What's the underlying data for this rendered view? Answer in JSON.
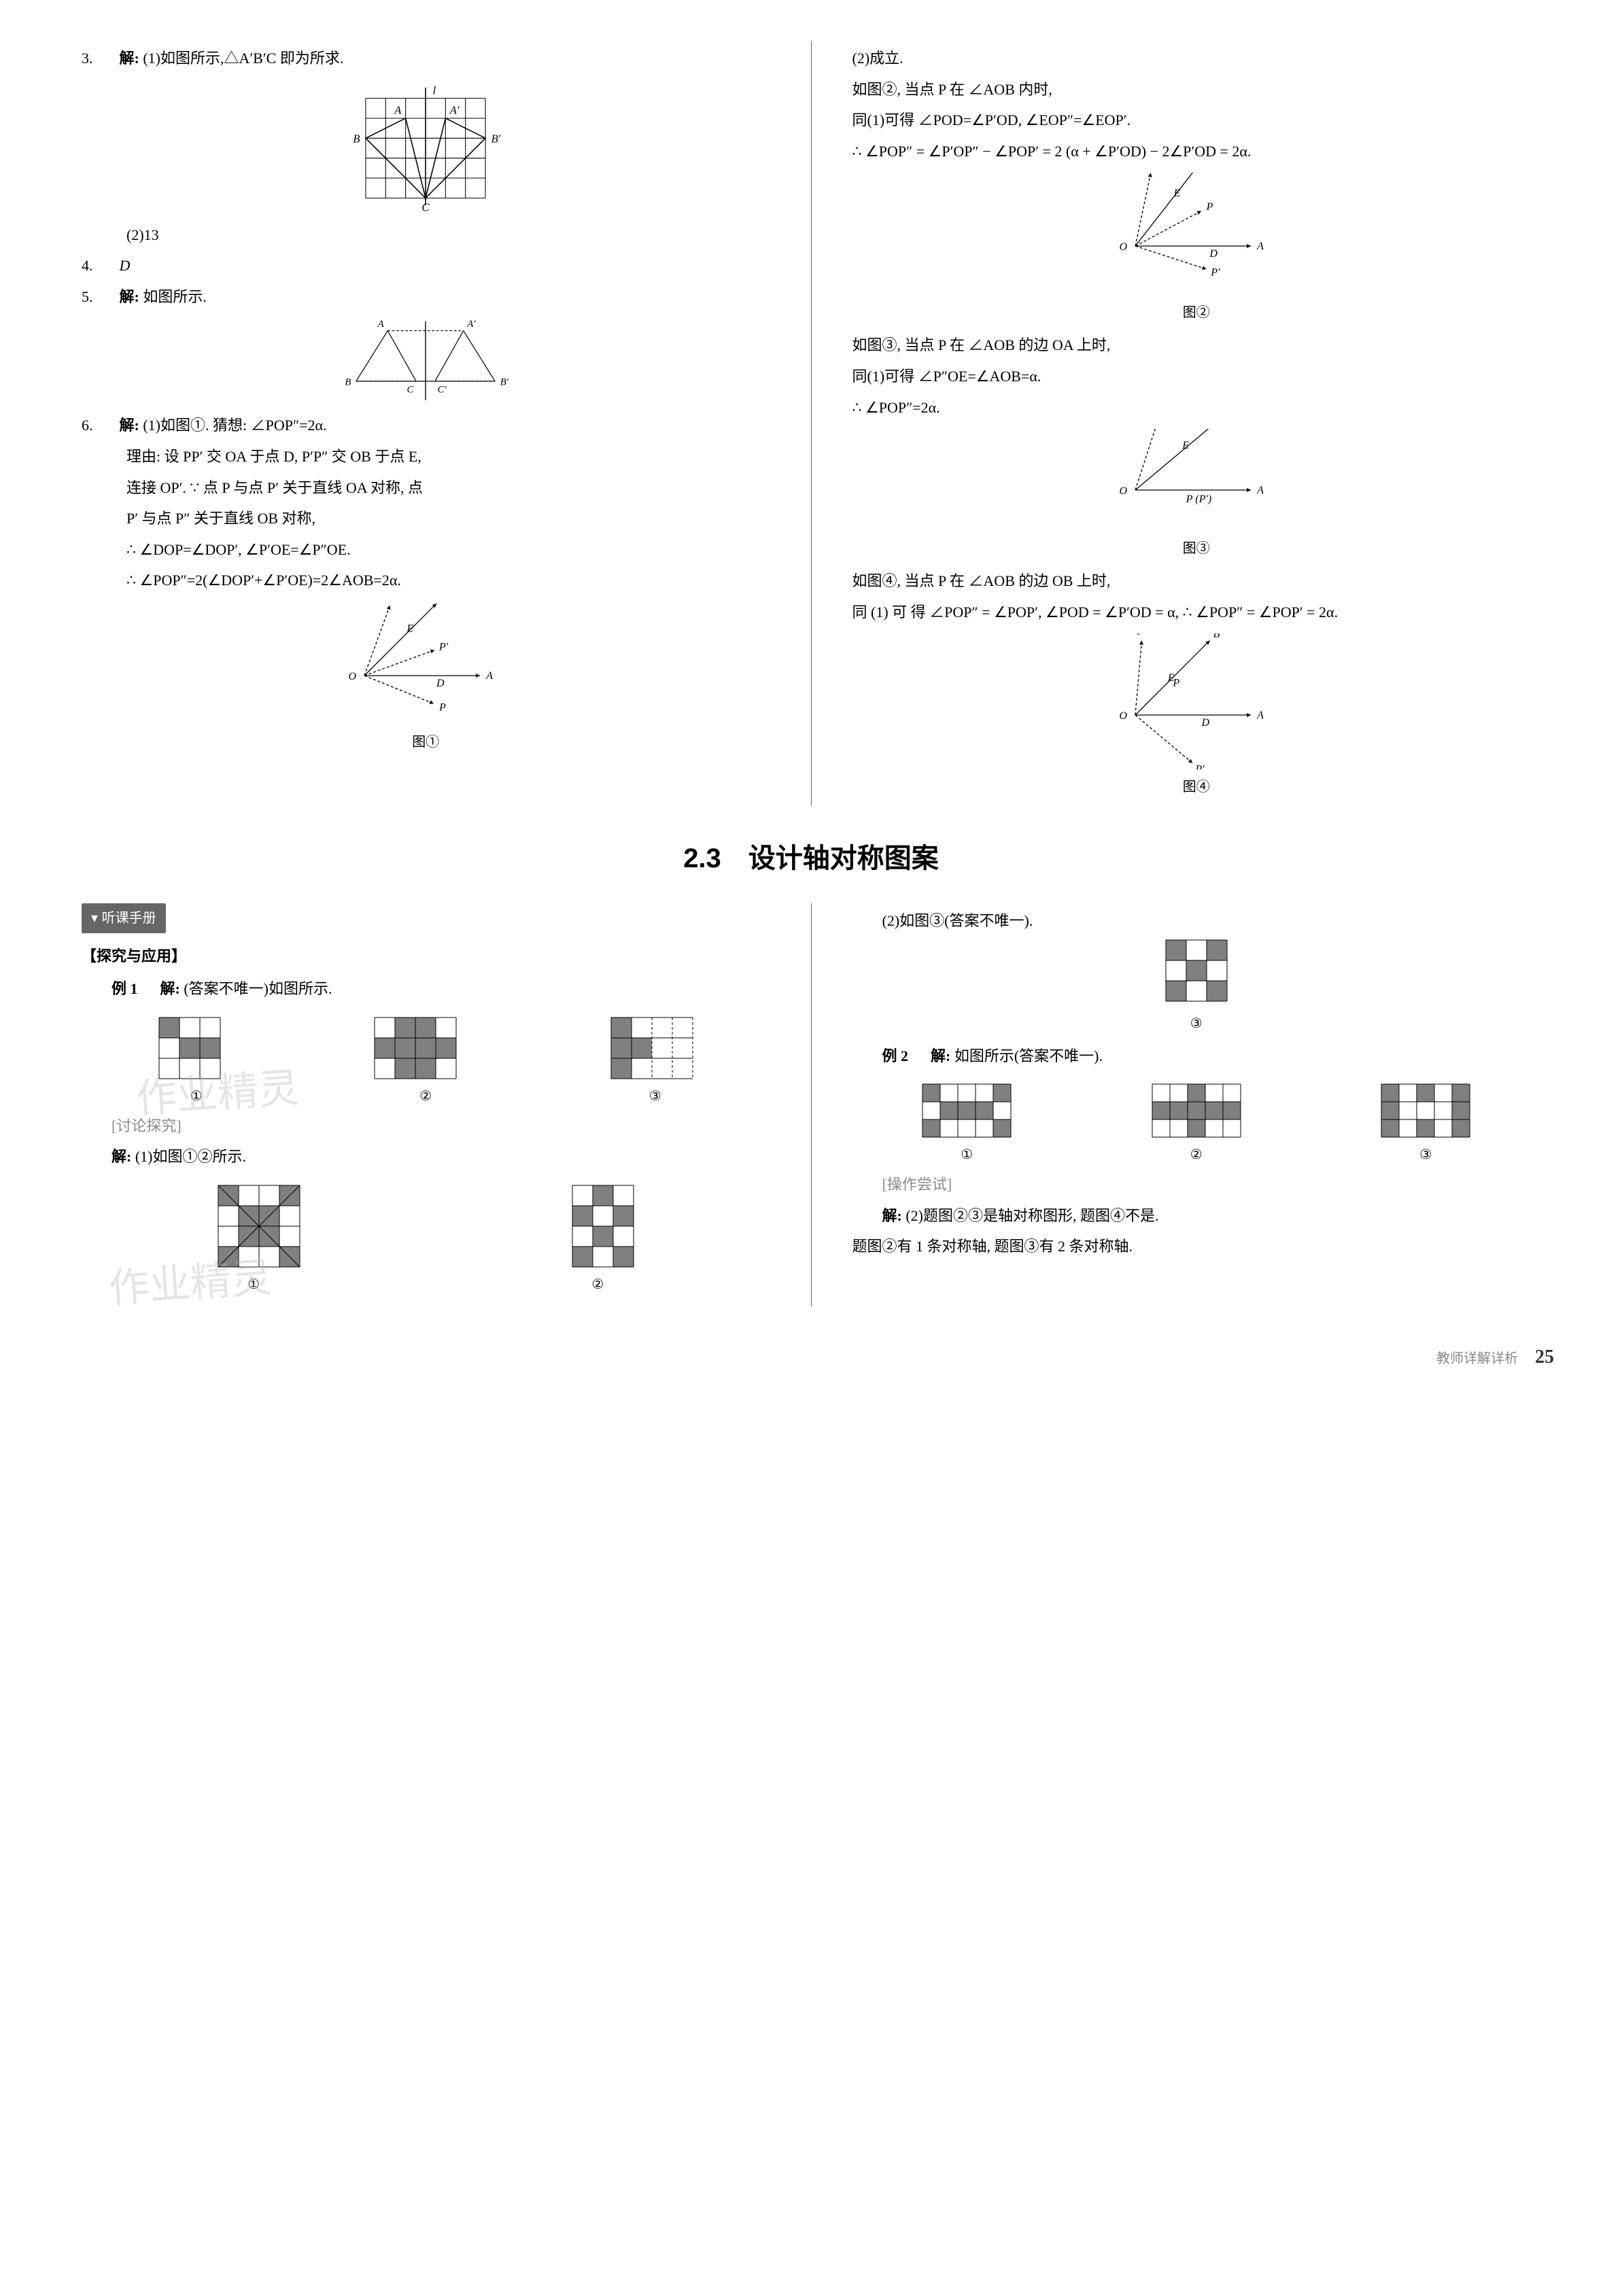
{
  "upper": {
    "left": {
      "q3": {
        "num": "3.",
        "label": "解:",
        "part1": "(1)如图所示,△A′B′C 即为所求.",
        "part2": "(2)13",
        "fig1": {
          "type": "grid-diagram",
          "grid": {
            "cols": 6,
            "rows": 5,
            "cell": 28,
            "stroke": "#000000"
          },
          "axis_label": "l",
          "points": {
            "A": [
              2,
              1
            ],
            "A'": [
              4,
              1
            ],
            "B": [
              0,
              2
            ],
            "B'": [
              6,
              2
            ],
            "C": [
              3,
              5
            ]
          },
          "triangles": [
            [
              "A",
              "B",
              "C"
            ],
            [
              "A'",
              "B'",
              "C"
            ]
          ],
          "fontsize": 16
        }
      },
      "q4": {
        "num": "4.",
        "ans": "D"
      },
      "q5": {
        "num": "5.",
        "label": "解:",
        "text": "如图所示.",
        "fig": {
          "type": "mirror-triangles",
          "points": {
            "A": [
              -60,
              -70
            ],
            "A'": [
              60,
              -70
            ],
            "B": [
              -110,
              10
            ],
            "B'": [
              110,
              10
            ],
            "C": [
              -15,
              10
            ],
            "C'": [
              15,
              10
            ]
          },
          "dashed": [
            "A-A'",
            "C-C'"
          ],
          "solid": [
            [
              "A",
              "B",
              "C"
            ],
            [
              "A'",
              "B'",
              "C'"
            ]
          ],
          "axis": "vertical",
          "fontsize": 16
        }
      },
      "q6": {
        "num": "6.",
        "label": "解:",
        "lines": [
          "(1)如图①. 猜想: ∠POP″=2α.",
          "理由: 设 PP′ 交 OA 于点 D, P′P″ 交 OB 于点 E,",
          "连接 OP′. ∵ 点 P 与点 P′ 关于直线 OA 对称, 点",
          "P′ 与点 P″ 关于直线 OB 对称,",
          "∴ ∠DOP=∠DOP′, ∠P′OE=∠P″OE.",
          "∴ ∠POP″=2(∠DOP′+∠P′OE)=2∠AOB=2α."
        ],
        "fig": {
          "label": "图①",
          "type": "ray-diagram",
          "origin": "O",
          "rays": [
            {
              "label": "P″",
              "angle": 70,
              "len": 110,
              "style": "dashed"
            },
            {
              "label": "B",
              "angle": 45,
              "len": 150,
              "style": "solid",
              "E_at": 0.55
            },
            {
              "label": "P′",
              "angle": 20,
              "len": 110,
              "style": "dashed"
            },
            {
              "label": "A",
              "angle": 0,
              "len": 170,
              "style": "solid",
              "D_at": 0.6
            },
            {
              "label": "P",
              "angle": -22,
              "len": 110,
              "style": "dashed"
            }
          ],
          "extras": {
            "D_label": "D",
            "E_label": "E"
          },
          "fontsize": 16
        }
      }
    },
    "right": {
      "p1": "(2)成立.",
      "p2": "如图②, 当点 P 在 ∠AOB 内时,",
      "p3": "同(1)可得 ∠POD=∠P′OD, ∠EOP″=∠EOP′.",
      "p4": "∴ ∠POP″ = ∠P′OP″ − ∠POP′ = 2 (α + ∠P′OD) − 2∠P′OD = 2α.",
      "fig2": {
        "label": "图②",
        "type": "ray-diagram",
        "origin": "O",
        "rays": [
          {
            "label": "P″",
            "angle": 78,
            "len": 110,
            "style": "dashed"
          },
          {
            "label": "B",
            "angle": 52,
            "len": 155,
            "style": "solid",
            "E_at": 0.55
          },
          {
            "label": "P",
            "angle": 28,
            "len": 110,
            "style": "dashed"
          },
          {
            "label": "A",
            "angle": 0,
            "len": 170,
            "style": "solid",
            "D_at": 0.62
          },
          {
            "label": "P′",
            "angle": -18,
            "len": 110,
            "style": "dashed"
          }
        ],
        "extras": {
          "D_label": "D",
          "E_label": "E"
        },
        "fontsize": 16
      },
      "p5": "如图③, 当点 P 在 ∠AOB 的边 OA 上时,",
      "p6": "同(1)可得 ∠P″OE=∠AOB=α.",
      "p7": "∴ ∠POP″=2α.",
      "fig3": {
        "label": "图③",
        "type": "ray-diagram",
        "origin": "O",
        "rays": [
          {
            "label": "P″",
            "angle": 72,
            "len": 110,
            "style": "dashed"
          },
          {
            "label": "B",
            "angle": 40,
            "len": 155,
            "style": "solid",
            "E_at": 0.55
          },
          {
            "label": "A",
            "angle": 0,
            "len": 170,
            "style": "solid",
            "P_at": 0.55,
            "P_label": "P (P′)"
          }
        ],
        "extras": {
          "E_label": "E"
        },
        "fontsize": 16
      },
      "p8": "如图④, 当点 P 在 ∠AOB 的边 OB 上时,",
      "p9": "同 (1) 可 得 ∠POP″ = ∠POP′, ∠POD = ∠P′OD = α, ∴ ∠POP″ = ∠POP′ = 2α.",
      "fig4": {
        "label": "图④",
        "type": "ray-diagram",
        "origin": "O",
        "rays": [
          {
            "label": "P″",
            "angle": 85,
            "len": 110,
            "style": "dashed"
          },
          {
            "label": "B",
            "angle": 45,
            "len": 155,
            "style": "solid",
            "P_at": 0.55,
            "P_label": "P",
            "E_at": 0.4
          },
          {
            "label": "A",
            "angle": 0,
            "len": 170,
            "style": "solid",
            "D_at": 0.55
          },
          {
            "label": "P′",
            "angle": -40,
            "len": 110,
            "style": "dashed"
          }
        ],
        "extras": {
          "D_label": "D",
          "E_label": "E"
        },
        "fontsize": 16
      }
    }
  },
  "section_title": "2.3　设计轴对称图案",
  "lower": {
    "left": {
      "badge": "听课手册",
      "sub1": "【探究与应用】",
      "ex1": {
        "label": "例 1",
        "solve": "解:",
        "text": "(答案不唯一)如图所示."
      },
      "ex1_figs": {
        "type": "grid-patterns",
        "cell": 30,
        "patterns": [
          {
            "label": "①",
            "cols": 3,
            "rows": 3,
            "filled": [
              [
                0,
                0
              ],
              [
                1,
                1
              ],
              [
                2,
                1
              ]
            ],
            "dashed": [
              [
                0,
                2
              ]
            ]
          },
          {
            "label": "②",
            "cols": 4,
            "rows": 3,
            "filled": [
              [
                1,
                0
              ],
              [
                2,
                0
              ],
              [
                0,
                1
              ],
              [
                1,
                1
              ],
              [
                2,
                1
              ],
              [
                3,
                1
              ],
              [
                1,
                2
              ],
              [
                2,
                2
              ]
            ]
          },
          {
            "label": "③",
            "cols": 4,
            "rows": 3,
            "filled": [
              [
                0,
                0
              ],
              [
                0,
                1
              ],
              [
                0,
                2
              ],
              [
                1,
                1
              ]
            ],
            "dashed_cols": [
              2,
              3
            ]
          }
        ]
      },
      "discuss": "[讨论探究]",
      "disc_text": {
        "label": "解:",
        "text": "(1)如图①②所示."
      },
      "disc_figs": {
        "type": "grid-patterns",
        "cell": 30,
        "patterns": [
          {
            "label": "①",
            "cols": 4,
            "rows": 4,
            "filled": [
              [
                0,
                0
              ],
              [
                3,
                0
              ],
              [
                1,
                1
              ],
              [
                2,
                1
              ],
              [
                1,
                2
              ],
              [
                2,
                2
              ],
              [
                0,
                3
              ],
              [
                3,
                3
              ]
            ],
            "diag": true
          },
          {
            "label": "②",
            "cols": 3,
            "rows": 4,
            "filled": [
              [
                1,
                0
              ],
              [
                0,
                1
              ],
              [
                2,
                1
              ],
              [
                1,
                2
              ],
              [
                0,
                3
              ],
              [
                2,
                3
              ]
            ]
          }
        ]
      },
      "watermark": "作业精灵"
    },
    "right": {
      "p1": "(2)如图③(答案不唯一).",
      "fig3": {
        "type": "grid-pattern",
        "label": "③",
        "cols": 3,
        "rows": 3,
        "cell": 30,
        "filled": [
          [
            0,
            0
          ],
          [
            2,
            0
          ],
          [
            1,
            1
          ],
          [
            0,
            2
          ],
          [
            2,
            2
          ]
        ]
      },
      "ex2": {
        "label": "例 2",
        "solve": "解:",
        "text": "如图所示(答案不唯一)."
      },
      "ex2_figs": {
        "type": "grid-patterns",
        "cell": 26,
        "patterns": [
          {
            "label": "①",
            "cols": 5,
            "rows": 3,
            "filled": [
              [
                0,
                0
              ],
              [
                4,
                0
              ],
              [
                1,
                1
              ],
              [
                2,
                1
              ],
              [
                3,
                1
              ],
              [
                0,
                2
              ],
              [
                4,
                2
              ]
            ]
          },
          {
            "label": "②",
            "cols": 5,
            "rows": 3,
            "filled": [
              [
                2,
                0
              ],
              [
                0,
                1
              ],
              [
                1,
                1
              ],
              [
                2,
                1
              ],
              [
                3,
                1
              ],
              [
                4,
                1
              ],
              [
                2,
                2
              ]
            ]
          },
          {
            "label": "③",
            "cols": 5,
            "rows": 3,
            "filled": [
              [
                0,
                0
              ],
              [
                2,
                0
              ],
              [
                4,
                0
              ],
              [
                0,
                1
              ],
              [
                4,
                1
              ],
              [
                0,
                2
              ],
              [
                2,
                2
              ],
              [
                4,
                2
              ]
            ]
          }
        ]
      },
      "try": "[操作尝试]",
      "try_text": {
        "label": "解:",
        "lines": [
          "(2)题图②③是轴对称图形, 题图④不是.",
          "题图②有 1 条对称轴, 题图③有 2 条对称轴."
        ]
      }
    }
  },
  "footer": {
    "text": "教师详解详析",
    "page": "25"
  },
  "colors": {
    "text": "#000000",
    "grid": "#000000",
    "fill": "#808080",
    "dashed": "#000000",
    "wm": "rgba(180,180,180,0.35)",
    "footer": "#888888"
  }
}
